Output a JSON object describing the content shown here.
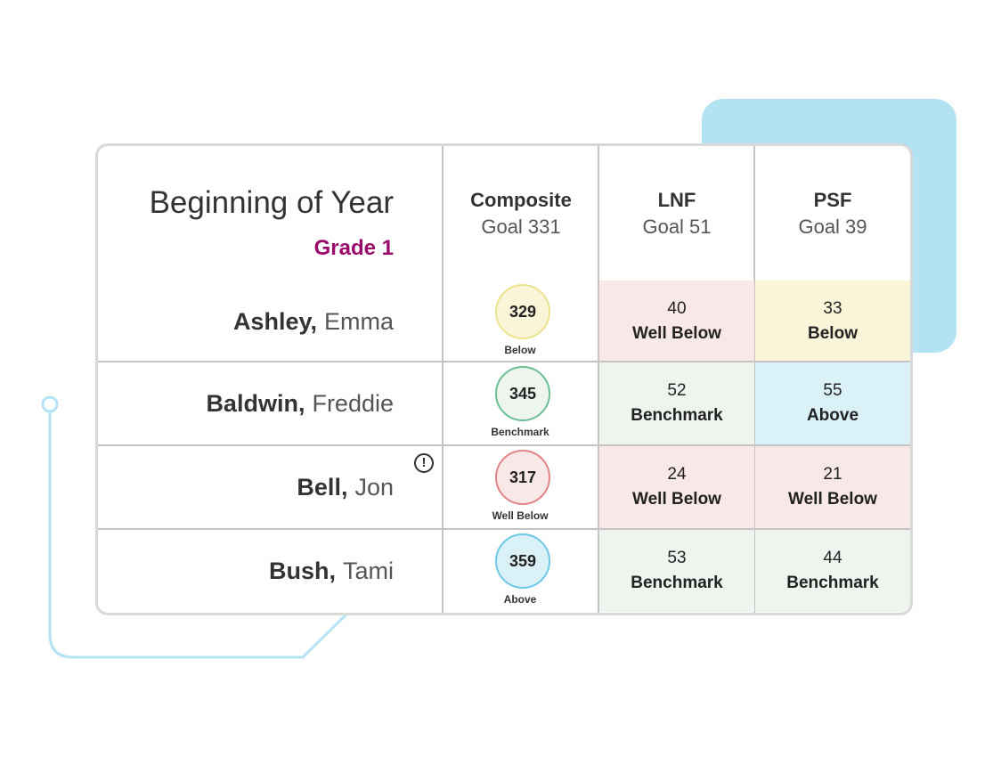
{
  "title": "Beginning of Year",
  "grade": "Grade 1",
  "columns": [
    {
      "name": "Composite",
      "goal": "Goal 331"
    },
    {
      "name": "LNF",
      "goal": "Goal 51"
    },
    {
      "name": "PSF",
      "goal": "Goal 39"
    }
  ],
  "students": [
    {
      "last": "Ashley,",
      "first": "Emma",
      "composite": {
        "score": "329",
        "level": "Below"
      },
      "lnf": {
        "score": "40",
        "level": "Well Below"
      },
      "psf": {
        "score": "33",
        "level": "Below"
      }
    },
    {
      "last": "Baldwin,",
      "first": "Freddie",
      "composite": {
        "score": "345",
        "level": "Benchmark"
      },
      "lnf": {
        "score": "52",
        "level": "Benchmark"
      },
      "psf": {
        "score": "55",
        "level": "Above"
      }
    },
    {
      "last": "Bell,",
      "first": "Jon",
      "alert_icon": "exclamation-circle-icon",
      "composite": {
        "score": "317",
        "level": "Well Below"
      },
      "lnf": {
        "score": "24",
        "level": "Well Below"
      },
      "psf": {
        "score": "21",
        "level": "Well Below"
      }
    },
    {
      "last": "Bush,",
      "first": "Tami",
      "composite": {
        "score": "359",
        "level": "Above"
      },
      "lnf": {
        "score": "53",
        "level": "Benchmark"
      },
      "psf": {
        "score": "44",
        "level": "Benchmark"
      }
    }
  ],
  "level_colors": {
    "Well Below": {
      "fill": "#f8e8e8",
      "border": "#e08585"
    },
    "Below": {
      "fill": "#faf5d8",
      "border": "#ede38c"
    },
    "Benchmark": {
      "fill": "#eef5ef",
      "border": "#6cbf94"
    },
    "Above": {
      "fill": "#daf1f8",
      "border": "#6cc8e6"
    }
  },
  "colors": {
    "grade": "#9a0a6a",
    "decoration": "#b3e3f2"
  }
}
